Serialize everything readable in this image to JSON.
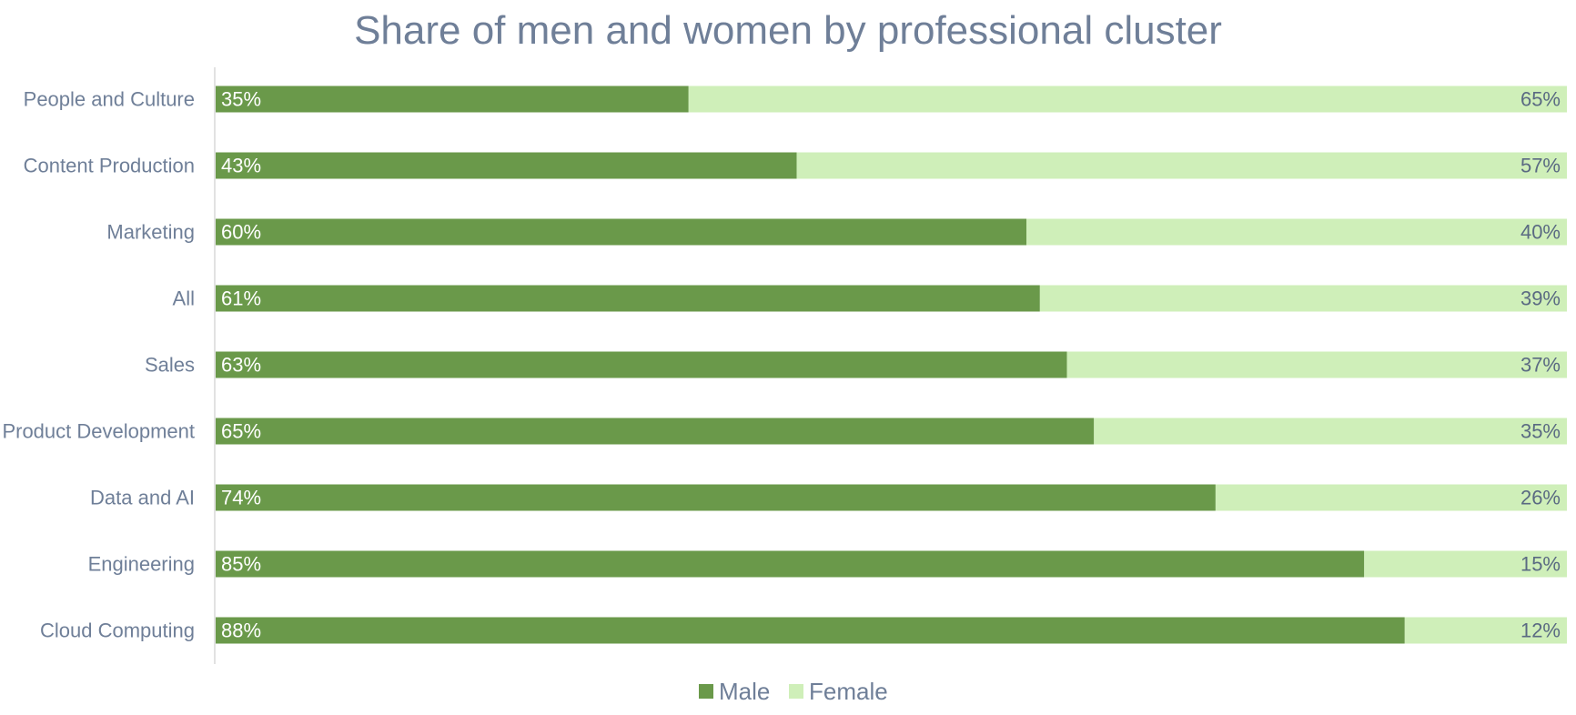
{
  "chart_data": {
    "type": "bar",
    "orientation": "horizontal",
    "stacked": true,
    "percent_stacked": true,
    "title": "Share of men and women by professional cluster",
    "categories": [
      "People and Culture",
      "Content Production",
      "Marketing",
      "All",
      "Sales",
      "Product Development",
      "Data and AI",
      "Engineering",
      "Cloud Computing"
    ],
    "series": [
      {
        "name": "Male",
        "color": "#6a994a",
        "values": [
          35,
          43,
          60,
          61,
          63,
          65,
          74,
          85,
          88
        ],
        "labels": [
          "35%",
          "43%",
          "60%",
          "61%",
          "63%",
          "65%",
          "74%",
          "85%",
          "88%"
        ]
      },
      {
        "name": "Female",
        "color": "#cfefb9",
        "values": [
          65,
          57,
          40,
          39,
          37,
          35,
          26,
          15,
          12
        ],
        "labels": [
          "65%",
          "57%",
          "40%",
          "39%",
          "37%",
          "35%",
          "26%",
          "15%",
          "12%"
        ]
      }
    ],
    "xlim": [
      0,
      100
    ],
    "grid": false,
    "legend_position": "bottom"
  }
}
